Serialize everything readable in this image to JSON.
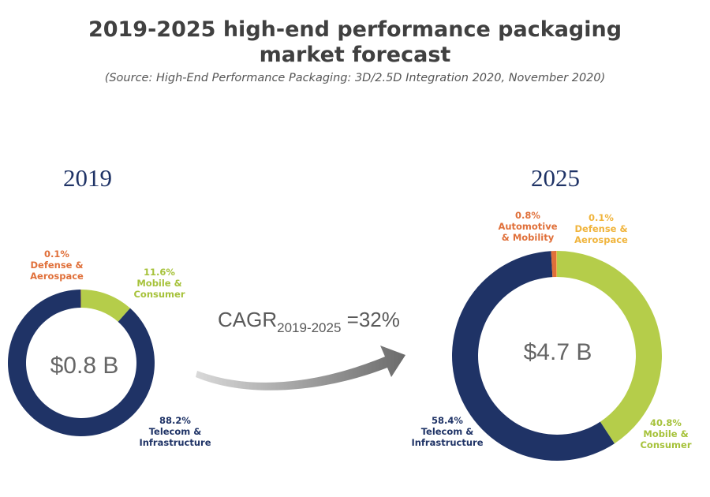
{
  "title_lines": [
    "2019-2025 high-end performance packaging",
    "market forecast"
  ],
  "source": "(Source: High-End Performance Packaging: 3D/2.5D Integration 2020, November 2020)",
  "cagr": {
    "prefix": "CAGR",
    "subscript": "2019-2025",
    "suffix": " =32%"
  },
  "colors": {
    "telecom": "#1f3366",
    "mobile": "#b5cd4a",
    "automotive": "#e0703a",
    "defense": "#f0b43c",
    "arrow": "#6b6b6b"
  },
  "chart_data": [
    {
      "type": "pie",
      "donut": true,
      "year": "2019",
      "total_label": "$0.8 B",
      "slices": [
        {
          "key": "mobile",
          "name": "Mobile & Consumer",
          "value": 11.6,
          "pct_label": "11.6%",
          "name_lines": [
            "Mobile &",
            "Consumer"
          ]
        },
        {
          "key": "telecom",
          "name": "Telecom & Infrastructure",
          "value": 88.2,
          "pct_label": "88.2%",
          "name_lines": [
            "Telecom &",
            "Infrastructure"
          ]
        },
        {
          "key": "defense",
          "name": "Defense & Aerospace",
          "value": 0.1,
          "pct_label": "0.1%",
          "name_lines": [
            "Defense &",
            "Aerospace"
          ]
        }
      ]
    },
    {
      "type": "pie",
      "donut": true,
      "year": "2025",
      "total_label": "$4.7 B",
      "slices": [
        {
          "key": "mobile",
          "name": "Mobile & Consumer",
          "value": 40.8,
          "pct_label": "40.8%",
          "name_lines": [
            "Mobile &",
            "Consumer"
          ]
        },
        {
          "key": "telecom",
          "name": "Telecom & Infrastructure",
          "value": 58.4,
          "pct_label": "58.4%",
          "name_lines": [
            "Telecom &",
            "Infrastructure"
          ]
        },
        {
          "key": "automotive",
          "name": "Automotive & Mobility",
          "value": 0.8,
          "pct_label": "0.8%",
          "name_lines": [
            "Automotive",
            "& Mobility"
          ]
        },
        {
          "key": "defense",
          "name": "Defense & Aerospace",
          "value": 0.1,
          "pct_label": "0.1%",
          "name_lines": [
            "Defense &",
            "Aerospace"
          ]
        }
      ]
    }
  ]
}
